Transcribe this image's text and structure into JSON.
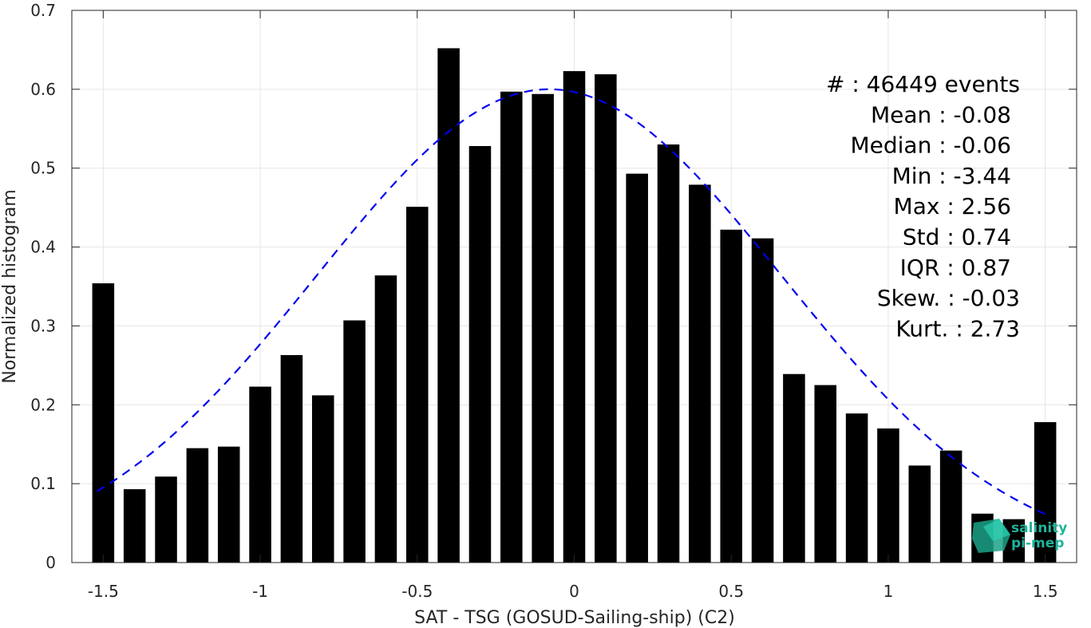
{
  "chart_data": {
    "type": "bar",
    "xlabel": "SAT - TSG (GOSUD-Sailing-ship) (C2)",
    "ylabel": "Normalized histogram",
    "xlim": [
      -1.6,
      1.6
    ],
    "ylim": [
      0,
      0.7
    ],
    "x_ticks": [
      -1.5,
      -1,
      -0.5,
      0,
      0.5,
      1,
      1.5
    ],
    "x_tick_labels": [
      "-1.5",
      "-1",
      "-0.5",
      "0",
      "0.5",
      "1",
      "1.5"
    ],
    "y_ticks": [
      0,
      0.1,
      0.2,
      0.3,
      0.4,
      0.5,
      0.6,
      0.7
    ],
    "y_tick_labels": [
      "0",
      "0.1",
      "0.2",
      "0.3",
      "0.4",
      "0.5",
      "0.6",
      "0.7"
    ],
    "grid": true,
    "bar_color": "#000000",
    "fit_color": "#0000ee",
    "bin_width": 0.1,
    "bins": {
      "x": [
        -1.5,
        -1.4,
        -1.3,
        -1.2,
        -1.1,
        -1.0,
        -0.9,
        -0.8,
        -0.7,
        -0.6,
        -0.5,
        -0.4,
        -0.3,
        -0.2,
        -0.1,
        0.0,
        0.1,
        0.2,
        0.3,
        0.4,
        0.5,
        0.6,
        0.7,
        0.8,
        0.9,
        1.0,
        1.1,
        1.2,
        1.3,
        1.4,
        1.5
      ],
      "values": [
        0.354,
        0.093,
        0.109,
        0.145,
        0.147,
        0.223,
        0.263,
        0.212,
        0.307,
        0.364,
        0.451,
        0.652,
        0.528,
        0.597,
        0.594,
        0.623,
        0.619,
        0.493,
        0.53,
        0.479,
        0.422,
        0.411,
        0.239,
        0.225,
        0.189,
        0.17,
        0.123,
        0.142,
        0.062,
        0.055,
        0.178
      ]
    },
    "fit_curve": {
      "style": "dashed",
      "mean": -0.08,
      "std": 0.74,
      "peak": 0.6,
      "x_range": [
        -1.52,
        1.5
      ]
    },
    "stats": [
      "#  : 46449 events",
      "Mean : -0.08",
      "Median : -0.06",
      "Min : -3.44",
      "Max : 2.56",
      "Std : 0.74",
      "IQR : 0.87",
      "Skew. : -0.03",
      "Kurt. : 2.73"
    ]
  },
  "logo": {
    "line1": "salinity",
    "line2": "pi-mep",
    "color": "#1fb39a"
  }
}
